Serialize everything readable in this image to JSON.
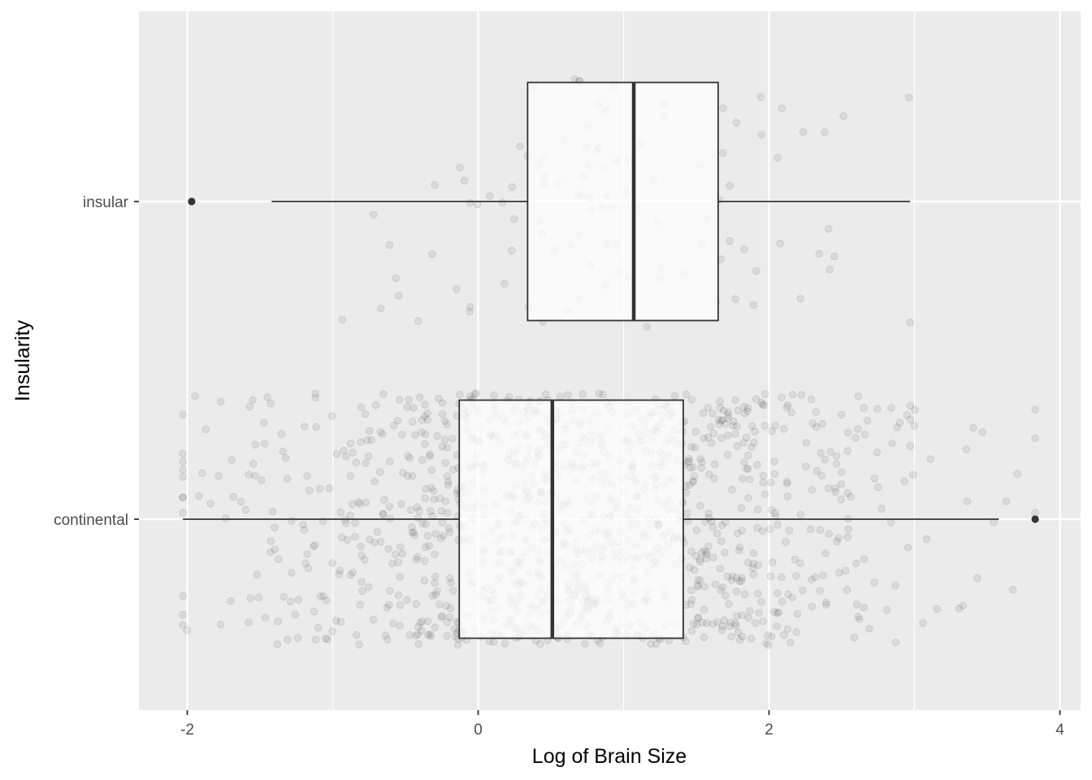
{
  "chart_data": {
    "type": "boxplot",
    "orientation": "horizontal",
    "title": "",
    "xlabel": "Log of Brain Size",
    "ylabel": "Insularity",
    "xlim": [
      -2.35,
      4.35
    ],
    "x_ticks": [
      -2,
      0,
      2,
      4
    ],
    "x_tick_labels": [
      "-2",
      "0",
      "2",
      "4"
    ],
    "grid": true,
    "legend": "none",
    "colors": {
      "panel_background": "#ebebeb",
      "grid": "#ffffff",
      "box_fill": "#ffffff",
      "box_line": "#333333",
      "jitter_points": "#000000",
      "outlier": "#333333"
    },
    "categories": [
      "insular",
      "continental"
    ],
    "boxes": [
      {
        "category": "insular",
        "whisker_low": -1.42,
        "q1": 0.34,
        "median": 1.07,
        "q3": 1.65,
        "whisker_high": 2.97,
        "outliers": [
          -1.97
        ],
        "jitter_n": 110,
        "jitter_range": [
          -1.97,
          2.97
        ]
      },
      {
        "category": "continental",
        "whisker_low": -2.03,
        "q1": -0.13,
        "median": 0.51,
        "q3": 1.41,
        "whisker_high": 3.58,
        "outliers": [
          3.83
        ],
        "jitter_n": 1200,
        "jitter_range": [
          -2.03,
          3.83
        ]
      }
    ]
  }
}
